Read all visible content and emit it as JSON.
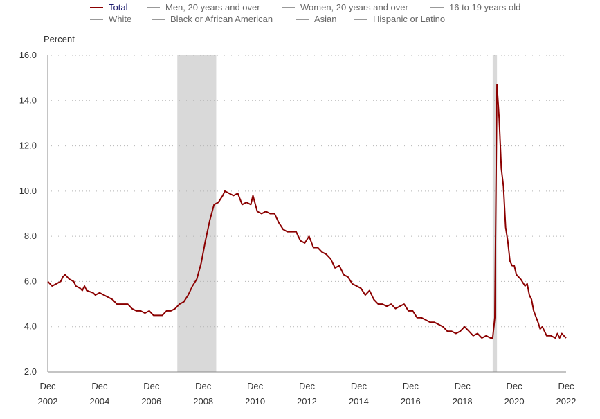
{
  "legend": {
    "items": [
      {
        "label": "Total",
        "color": "#8b0000",
        "active": true
      },
      {
        "label": "Men, 20 years and over",
        "color": "#999999",
        "active": false
      },
      {
        "label": "Women, 20 years and over",
        "color": "#999999",
        "active": false
      },
      {
        "label": "16 to 19 years old",
        "color": "#999999",
        "active": false
      },
      {
        "label": "White",
        "color": "#999999",
        "active": false
      },
      {
        "label": "Black or African American",
        "color": "#999999",
        "active": false
      },
      {
        "label": "Asian",
        "color": "#999999",
        "active": false
      },
      {
        "label": "Hispanic or Latino",
        "color": "#999999",
        "active": false
      }
    ]
  },
  "chart_data": {
    "type": "line",
    "ylabel": "Percent",
    "ylim": [
      2.0,
      16.0
    ],
    "yticks": [
      "2.0",
      "4.0",
      "6.0",
      "8.0",
      "10.0",
      "12.0",
      "14.0",
      "16.0"
    ],
    "xlim": [
      "2002-12",
      "2022-12"
    ],
    "xticks": [
      {
        "month": "Dec",
        "year": "2002"
      },
      {
        "month": "Dec",
        "year": "2004"
      },
      {
        "month": "Dec",
        "year": "2006"
      },
      {
        "month": "Dec",
        "year": "2008"
      },
      {
        "month": "Dec",
        "year": "2010"
      },
      {
        "month": "Dec",
        "year": "2012"
      },
      {
        "month": "Dec",
        "year": "2014"
      },
      {
        "month": "Dec",
        "year": "2016"
      },
      {
        "month": "Dec",
        "year": "2018"
      },
      {
        "month": "Dec",
        "year": "2020"
      },
      {
        "month": "Dec",
        "year": "2022"
      }
    ],
    "grid": "horizontal dotted",
    "legend_position": "top",
    "recessions": [
      {
        "start": "2007-12",
        "end": "2009-06"
      },
      {
        "start": "2020-02",
        "end": "2020-04"
      }
    ],
    "recession_color": "#d9d9d9",
    "series": [
      {
        "name": "Total",
        "color": "#8b0000",
        "points": [
          [
            "2002-12",
            6.0
          ],
          [
            "2003-02",
            5.8
          ],
          [
            "2003-04",
            5.9
          ],
          [
            "2003-06",
            6.0
          ],
          [
            "2003-07",
            6.2
          ],
          [
            "2003-08",
            6.3
          ],
          [
            "2003-09",
            6.2
          ],
          [
            "2003-10",
            6.1
          ],
          [
            "2003-12",
            6.0
          ],
          [
            "2004-01",
            5.8
          ],
          [
            "2004-03",
            5.7
          ],
          [
            "2004-04",
            5.6
          ],
          [
            "2004-05",
            5.8
          ],
          [
            "2004-06",
            5.6
          ],
          [
            "2004-09",
            5.5
          ],
          [
            "2004-10",
            5.4
          ],
          [
            "2004-12",
            5.5
          ],
          [
            "2005-02",
            5.4
          ],
          [
            "2005-04",
            5.3
          ],
          [
            "2005-06",
            5.2
          ],
          [
            "2005-08",
            5.0
          ],
          [
            "2005-10",
            5.0
          ],
          [
            "2006-01",
            5.0
          ],
          [
            "2006-03",
            4.8
          ],
          [
            "2006-05",
            4.7
          ],
          [
            "2006-07",
            4.7
          ],
          [
            "2006-09",
            4.6
          ],
          [
            "2006-11",
            4.7
          ],
          [
            "2007-01",
            4.5
          ],
          [
            "2007-03",
            4.5
          ],
          [
            "2007-05",
            4.5
          ],
          [
            "2007-07",
            4.7
          ],
          [
            "2007-09",
            4.7
          ],
          [
            "2007-11",
            4.8
          ],
          [
            "2008-01",
            5.0
          ],
          [
            "2008-03",
            5.1
          ],
          [
            "2008-05",
            5.4
          ],
          [
            "2008-07",
            5.8
          ],
          [
            "2008-09",
            6.1
          ],
          [
            "2008-11",
            6.8
          ],
          [
            "2009-01",
            7.8
          ],
          [
            "2009-03",
            8.7
          ],
          [
            "2009-05",
            9.4
          ],
          [
            "2009-07",
            9.5
          ],
          [
            "2009-09",
            9.8
          ],
          [
            "2009-10",
            10.0
          ],
          [
            "2009-12",
            9.9
          ],
          [
            "2010-02",
            9.8
          ],
          [
            "2010-04",
            9.9
          ],
          [
            "2010-06",
            9.4
          ],
          [
            "2010-08",
            9.5
          ],
          [
            "2010-10",
            9.4
          ],
          [
            "2010-11",
            9.8
          ],
          [
            "2011-01",
            9.1
          ],
          [
            "2011-03",
            9.0
          ],
          [
            "2011-05",
            9.1
          ],
          [
            "2011-07",
            9.0
          ],
          [
            "2011-09",
            9.0
          ],
          [
            "2011-11",
            8.6
          ],
          [
            "2012-01",
            8.3
          ],
          [
            "2012-03",
            8.2
          ],
          [
            "2012-05",
            8.2
          ],
          [
            "2012-07",
            8.2
          ],
          [
            "2012-09",
            7.8
          ],
          [
            "2012-11",
            7.7
          ],
          [
            "2013-01",
            8.0
          ],
          [
            "2013-03",
            7.5
          ],
          [
            "2013-05",
            7.5
          ],
          [
            "2013-07",
            7.3
          ],
          [
            "2013-09",
            7.2
          ],
          [
            "2013-11",
            7.0
          ],
          [
            "2014-01",
            6.6
          ],
          [
            "2014-03",
            6.7
          ],
          [
            "2014-05",
            6.3
          ],
          [
            "2014-07",
            6.2
          ],
          [
            "2014-09",
            5.9
          ],
          [
            "2014-11",
            5.8
          ],
          [
            "2015-01",
            5.7
          ],
          [
            "2015-03",
            5.4
          ],
          [
            "2015-05",
            5.6
          ],
          [
            "2015-07",
            5.2
          ],
          [
            "2015-09",
            5.0
          ],
          [
            "2015-11",
            5.0
          ],
          [
            "2016-01",
            4.9
          ],
          [
            "2016-03",
            5.0
          ],
          [
            "2016-05",
            4.8
          ],
          [
            "2016-07",
            4.9
          ],
          [
            "2016-09",
            5.0
          ],
          [
            "2016-11",
            4.7
          ],
          [
            "2017-01",
            4.7
          ],
          [
            "2017-03",
            4.4
          ],
          [
            "2017-05",
            4.4
          ],
          [
            "2017-07",
            4.3
          ],
          [
            "2017-09",
            4.2
          ],
          [
            "2017-11",
            4.2
          ],
          [
            "2018-01",
            4.1
          ],
          [
            "2018-03",
            4.0
          ],
          [
            "2018-05",
            3.8
          ],
          [
            "2018-07",
            3.8
          ],
          [
            "2018-09",
            3.7
          ],
          [
            "2018-11",
            3.8
          ],
          [
            "2019-01",
            4.0
          ],
          [
            "2019-03",
            3.8
          ],
          [
            "2019-05",
            3.6
          ],
          [
            "2019-07",
            3.7
          ],
          [
            "2019-09",
            3.5
          ],
          [
            "2019-11",
            3.6
          ],
          [
            "2020-01",
            3.5
          ],
          [
            "2020-02",
            3.5
          ],
          [
            "2020-03",
            4.4
          ],
          [
            "2020-04",
            14.7
          ],
          [
            "2020-05",
            13.2
          ],
          [
            "2020-06",
            11.0
          ],
          [
            "2020-07",
            10.2
          ],
          [
            "2020-08",
            8.4
          ],
          [
            "2020-09",
            7.8
          ],
          [
            "2020-10",
            6.9
          ],
          [
            "2020-11",
            6.7
          ],
          [
            "2020-12",
            6.7
          ],
          [
            "2021-01",
            6.3
          ],
          [
            "2021-03",
            6.1
          ],
          [
            "2021-05",
            5.8
          ],
          [
            "2021-06",
            5.9
          ],
          [
            "2021-07",
            5.4
          ],
          [
            "2021-08",
            5.2
          ],
          [
            "2021-09",
            4.7
          ],
          [
            "2021-11",
            4.2
          ],
          [
            "2021-12",
            3.9
          ],
          [
            "2022-01",
            4.0
          ],
          [
            "2022-03",
            3.6
          ],
          [
            "2022-05",
            3.6
          ],
          [
            "2022-07",
            3.5
          ],
          [
            "2022-08",
            3.7
          ],
          [
            "2022-09",
            3.5
          ],
          [
            "2022-10",
            3.7
          ],
          [
            "2022-11",
            3.6
          ],
          [
            "2022-12",
            3.5
          ]
        ]
      }
    ]
  }
}
